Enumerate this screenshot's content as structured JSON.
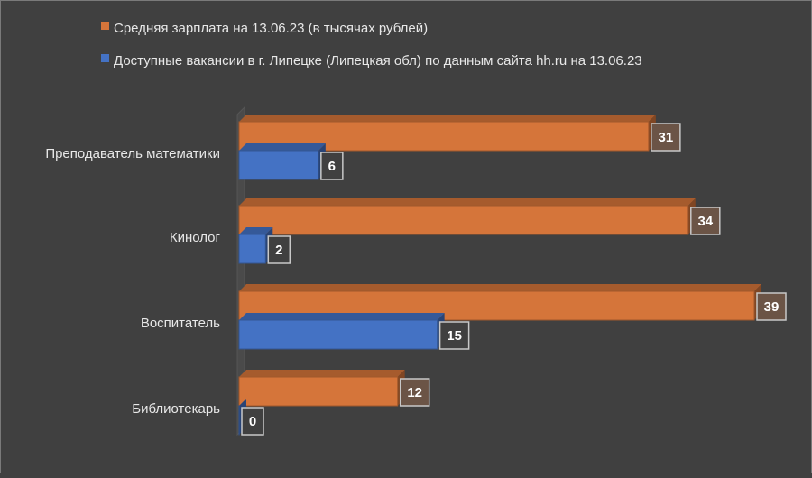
{
  "chart_data": {
    "type": "bar",
    "orientation": "horizontal",
    "style": "3d",
    "categories": [
      "Преподаватель математики",
      "Кинолог",
      "Воспитатель",
      "Библиотекарь"
    ],
    "series": [
      {
        "name": "Средняя зарплата на 13.06.23 (в тысячах рублей)",
        "color": "#d5753a",
        "values": [
          31,
          34,
          39,
          12
        ]
      },
      {
        "name": "Доступные вакансии в г. Липецке (Липецкая обл) по данным сайта hh.ru на 13.06.23",
        "color": "#4472c4",
        "values": [
          6,
          2,
          15,
          0
        ]
      }
    ],
    "xlim": [
      0,
      39
    ],
    "grid": false,
    "legend_position": "top-left",
    "data_labels": true,
    "background": "#404040",
    "text_color": "#e8e8e8"
  }
}
